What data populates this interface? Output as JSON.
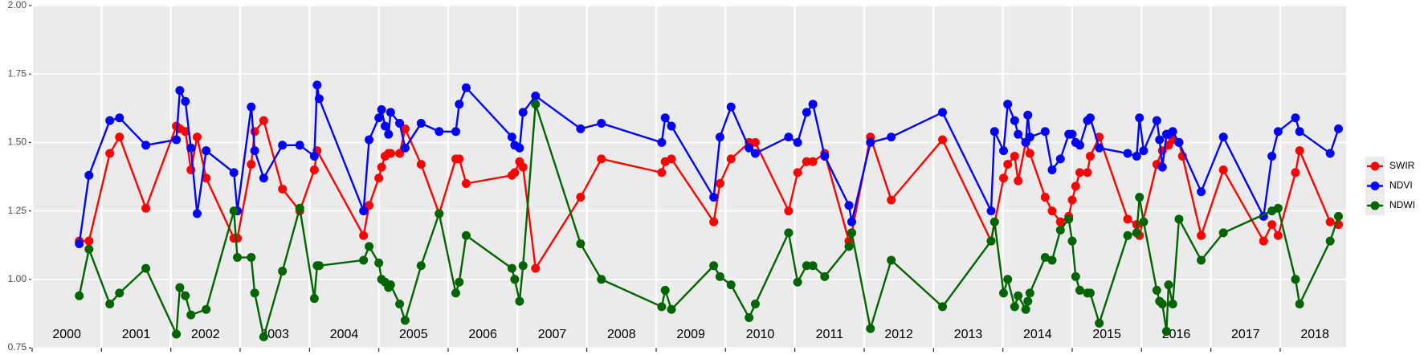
{
  "chart_data": {
    "type": "line",
    "xlim": [
      2000,
      2018.95
    ],
    "xticks": [
      2000,
      2001,
      2002,
      2003,
      2004,
      2005,
      2006,
      2007,
      2008,
      2009,
      2010,
      2011,
      2012,
      2013,
      2014,
      2015,
      2016,
      2017,
      2018
    ],
    "ylim": [
      0.75,
      2.0
    ],
    "yticks": [
      0.75,
      {
        "value": 1.0,
        "label": "1.00"
      },
      1.25,
      {
        "value": 1.5,
        "label": "1.50"
      },
      1.75,
      {
        "value": 2.0,
        "label": "2.00"
      }
    ],
    "grid": true,
    "legend": "right",
    "series": [
      {
        "name": "SWIR",
        "color": "#ff0000",
        "x": [
          2000.68,
          2000.82,
          2001.12,
          2001.26,
          2001.64,
          2002.08,
          2002.13,
          2002.21,
          2002.29,
          2002.38,
          2002.51,
          2002.91,
          2002.96,
          2003.16,
          2003.21,
          2003.34,
          2003.61,
          2003.86,
          2004.07,
          2004.11,
          2004.78,
          2004.86,
          2005.0,
          2005.04,
          2005.09,
          2005.14,
          2005.17,
          2005.3,
          2005.38,
          2005.61,
          2005.87,
          2006.11,
          2006.16,
          2006.26,
          2006.92,
          2006.96,
          2007.03,
          2007.08,
          2007.26,
          2007.91,
          2008.21,
          2009.08,
          2009.13,
          2009.22,
          2009.83,
          2009.92,
          2010.08,
          2010.34,
          2010.43,
          2010.91,
          2011.04,
          2011.17,
          2011.26,
          2011.43,
          2011.78,
          2011.82,
          2012.09,
          2012.39,
          2013.13,
          2013.83,
          2014.01,
          2014.07,
          2014.17,
          2014.22,
          2014.33,
          2014.39,
          2014.61,
          2014.71,
          2014.83,
          2014.95,
          2015.0,
          2015.05,
          2015.11,
          2015.22,
          2015.26,
          2015.39,
          2015.8,
          2015.93,
          2015.97,
          2016.22,
          2016.3,
          2016.39,
          2016.45,
          2016.54,
          2016.59,
          2016.86,
          2017.18,
          2017.76,
          2017.88,
          2017.97,
          2018.22,
          2018.28,
          2018.72,
          2018.84
        ],
        "values": [
          1.14,
          1.14,
          1.46,
          1.52,
          1.26,
          1.56,
          1.55,
          1.54,
          1.4,
          1.52,
          1.37,
          1.15,
          1.15,
          1.42,
          1.54,
          1.58,
          1.33,
          1.25,
          1.4,
          1.47,
          1.16,
          1.27,
          1.37,
          1.41,
          1.45,
          1.46,
          1.46,
          1.46,
          1.55,
          1.42,
          1.24,
          1.44,
          1.44,
          1.35,
          1.38,
          1.39,
          1.43,
          1.41,
          1.04,
          1.3,
          1.44,
          1.39,
          1.43,
          1.44,
          1.21,
          1.35,
          1.44,
          1.5,
          1.5,
          1.25,
          1.39,
          1.43,
          1.43,
          1.46,
          1.14,
          1.17,
          1.52,
          1.29,
          1.51,
          1.14,
          1.37,
          1.42,
          1.45,
          1.36,
          1.5,
          1.46,
          1.3,
          1.25,
          1.21,
          1.23,
          1.29,
          1.34,
          1.39,
          1.39,
          1.45,
          1.52,
          1.22,
          1.2,
          1.16,
          1.42,
          1.47,
          1.49,
          1.51,
          1.5,
          1.45,
          1.16,
          1.4,
          1.14,
          1.2,
          1.16,
          1.39,
          1.47,
          1.21,
          1.2
        ]
      },
      {
        "name": "NDVI",
        "color": "#0000ff",
        "x": [
          2000.68,
          2000.82,
          2001.12,
          2001.26,
          2001.64,
          2002.08,
          2002.13,
          2002.21,
          2002.29,
          2002.38,
          2002.51,
          2002.91,
          2002.96,
          2003.16,
          2003.21,
          2003.34,
          2003.61,
          2003.86,
          2004.07,
          2004.11,
          2004.14,
          2004.78,
          2004.86,
          2005.0,
          2005.04,
          2005.09,
          2005.14,
          2005.17,
          2005.3,
          2005.38,
          2005.61,
          2005.87,
          2006.11,
          2006.16,
          2006.26,
          2006.92,
          2006.96,
          2007.03,
          2007.08,
          2007.26,
          2007.91,
          2008.21,
          2009.08,
          2009.13,
          2009.22,
          2009.83,
          2009.92,
          2010.08,
          2010.34,
          2010.43,
          2010.91,
          2011.04,
          2011.17,
          2011.26,
          2011.43,
          2011.78,
          2011.82,
          2012.09,
          2012.39,
          2013.13,
          2013.83,
          2013.88,
          2014.01,
          2014.07,
          2014.17,
          2014.22,
          2014.33,
          2014.36,
          2014.39,
          2014.61,
          2014.71,
          2014.83,
          2014.95,
          2015.0,
          2015.05,
          2015.11,
          2015.22,
          2015.26,
          2015.39,
          2015.8,
          2015.93,
          2015.97,
          2016.03,
          2016.22,
          2016.26,
          2016.3,
          2016.36,
          2016.39,
          2016.45,
          2016.54,
          2016.86,
          2017.18,
          2017.76,
          2017.88,
          2017.97,
          2018.22,
          2018.28,
          2018.72,
          2018.84
        ],
        "values": [
          1.13,
          1.38,
          1.58,
          1.59,
          1.49,
          1.51,
          1.69,
          1.65,
          1.48,
          1.24,
          1.47,
          1.39,
          1.25,
          1.63,
          1.47,
          1.37,
          1.49,
          1.49,
          1.45,
          1.71,
          1.66,
          1.25,
          1.51,
          1.59,
          1.62,
          1.56,
          1.53,
          1.61,
          1.57,
          1.48,
          1.57,
          1.54,
          1.54,
          1.64,
          1.7,
          1.52,
          1.49,
          1.48,
          1.61,
          1.67,
          1.55,
          1.57,
          1.5,
          1.59,
          1.56,
          1.3,
          1.52,
          1.63,
          1.48,
          1.46,
          1.52,
          1.5,
          1.61,
          1.64,
          1.45,
          1.27,
          1.21,
          1.5,
          1.52,
          1.61,
          1.25,
          1.54,
          1.47,
          1.64,
          1.58,
          1.53,
          1.5,
          1.6,
          1.52,
          1.54,
          1.4,
          1.44,
          1.53,
          1.53,
          1.5,
          1.49,
          1.58,
          1.59,
          1.48,
          1.46,
          1.45,
          1.59,
          1.47,
          1.58,
          1.51,
          1.41,
          1.53,
          1.53,
          1.54,
          1.5,
          1.32,
          1.52,
          1.23,
          1.45,
          1.54,
          1.59,
          1.54,
          1.46,
          1.55
        ]
      },
      {
        "name": "NDWI",
        "color": "#006400",
        "x": [
          2000.68,
          2000.82,
          2001.12,
          2001.26,
          2001.64,
          2002.08,
          2002.13,
          2002.21,
          2002.29,
          2002.51,
          2002.91,
          2002.96,
          2003.16,
          2003.21,
          2003.34,
          2003.61,
          2003.86,
          2004.07,
          2004.11,
          2004.14,
          2004.78,
          2004.86,
          2005.0,
          2005.04,
          2005.09,
          2005.14,
          2005.17,
          2005.3,
          2005.38,
          2005.61,
          2005.87,
          2006.11,
          2006.16,
          2006.26,
          2006.92,
          2006.96,
          2007.03,
          2007.08,
          2007.26,
          2007.91,
          2008.21,
          2009.08,
          2009.13,
          2009.22,
          2009.83,
          2009.92,
          2010.08,
          2010.34,
          2010.43,
          2010.91,
          2011.04,
          2011.17,
          2011.26,
          2011.43,
          2011.78,
          2011.82,
          2012.09,
          2012.39,
          2013.13,
          2013.83,
          2013.88,
          2014.01,
          2014.07,
          2014.17,
          2014.22,
          2014.33,
          2014.36,
          2014.39,
          2014.61,
          2014.71,
          2014.83,
          2014.95,
          2015.0,
          2015.05,
          2015.11,
          2015.22,
          2015.26,
          2015.39,
          2015.8,
          2015.93,
          2015.97,
          2016.03,
          2016.22,
          2016.26,
          2016.3,
          2016.36,
          2016.39,
          2016.45,
          2016.54,
          2016.86,
          2017.18,
          2017.88,
          2017.97,
          2018.22,
          2018.28,
          2018.72,
          2018.84
        ],
        "values": [
          0.94,
          1.11,
          0.91,
          0.95,
          1.04,
          0.8,
          0.97,
          0.94,
          0.87,
          0.89,
          1.25,
          1.08,
          1.08,
          0.95,
          0.79,
          1.03,
          1.26,
          0.93,
          1.05,
          1.05,
          1.07,
          1.12,
          1.06,
          1.0,
          0.99,
          0.97,
          0.98,
          0.91,
          0.85,
          1.05,
          1.24,
          0.95,
          0.99,
          1.16,
          1.04,
          1.0,
          0.92,
          1.05,
          1.64,
          1.13,
          1.0,
          0.9,
          0.96,
          0.89,
          1.05,
          1.01,
          0.98,
          0.86,
          0.91,
          1.17,
          0.99,
          1.05,
          1.05,
          1.01,
          1.12,
          1.17,
          0.82,
          1.07,
          0.9,
          1.14,
          1.21,
          0.95,
          1.0,
          0.9,
          0.94,
          0.89,
          0.92,
          0.95,
          1.08,
          1.07,
          1.18,
          1.22,
          1.14,
          1.01,
          0.96,
          0.95,
          0.95,
          0.84,
          1.16,
          1.17,
          1.3,
          1.21,
          0.96,
          0.92,
          0.91,
          0.81,
          0.98,
          0.91,
          1.22,
          1.07,
          1.17,
          1.25,
          1.26,
          1.0,
          0.91,
          1.14,
          1.23
        ]
      }
    ]
  }
}
